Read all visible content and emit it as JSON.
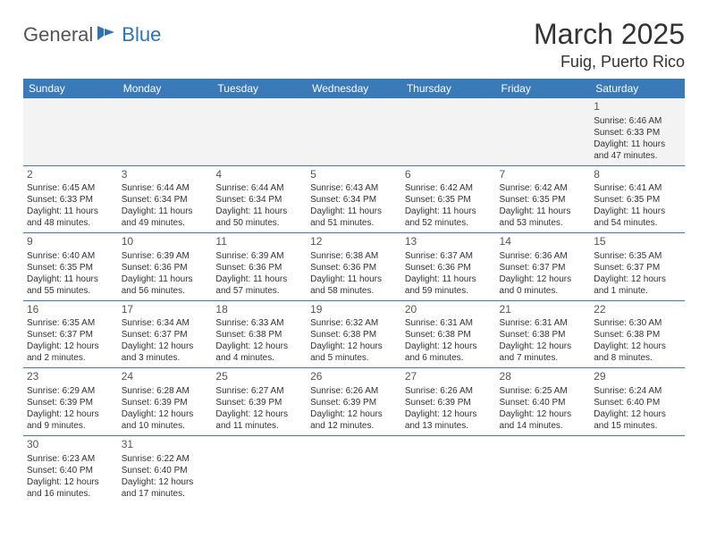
{
  "logo": {
    "general": "General",
    "blue": "Blue"
  },
  "title": "March 2025",
  "location": "Fuig, Puerto Rico",
  "headers": [
    "Sunday",
    "Monday",
    "Tuesday",
    "Wednesday",
    "Thursday",
    "Friday",
    "Saturday"
  ],
  "colors": {
    "header_bg": "#3a7ab8",
    "header_fg": "#ffffff",
    "first_row_bg": "#f3f3f3",
    "border": "#3a7ab8",
    "logo_blue": "#2e74b5"
  },
  "weeks": [
    [
      null,
      null,
      null,
      null,
      null,
      null,
      {
        "n": "1",
        "sr": "Sunrise: 6:46 AM",
        "ss": "Sunset: 6:33 PM",
        "d1": "Daylight: 11 hours",
        "d2": "and 47 minutes."
      }
    ],
    [
      {
        "n": "2",
        "sr": "Sunrise: 6:45 AM",
        "ss": "Sunset: 6:33 PM",
        "d1": "Daylight: 11 hours",
        "d2": "and 48 minutes."
      },
      {
        "n": "3",
        "sr": "Sunrise: 6:44 AM",
        "ss": "Sunset: 6:34 PM",
        "d1": "Daylight: 11 hours",
        "d2": "and 49 minutes."
      },
      {
        "n": "4",
        "sr": "Sunrise: 6:44 AM",
        "ss": "Sunset: 6:34 PM",
        "d1": "Daylight: 11 hours",
        "d2": "and 50 minutes."
      },
      {
        "n": "5",
        "sr": "Sunrise: 6:43 AM",
        "ss": "Sunset: 6:34 PM",
        "d1": "Daylight: 11 hours",
        "d2": "and 51 minutes."
      },
      {
        "n": "6",
        "sr": "Sunrise: 6:42 AM",
        "ss": "Sunset: 6:35 PM",
        "d1": "Daylight: 11 hours",
        "d2": "and 52 minutes."
      },
      {
        "n": "7",
        "sr": "Sunrise: 6:42 AM",
        "ss": "Sunset: 6:35 PM",
        "d1": "Daylight: 11 hours",
        "d2": "and 53 minutes."
      },
      {
        "n": "8",
        "sr": "Sunrise: 6:41 AM",
        "ss": "Sunset: 6:35 PM",
        "d1": "Daylight: 11 hours",
        "d2": "and 54 minutes."
      }
    ],
    [
      {
        "n": "9",
        "sr": "Sunrise: 6:40 AM",
        "ss": "Sunset: 6:35 PM",
        "d1": "Daylight: 11 hours",
        "d2": "and 55 minutes."
      },
      {
        "n": "10",
        "sr": "Sunrise: 6:39 AM",
        "ss": "Sunset: 6:36 PM",
        "d1": "Daylight: 11 hours",
        "d2": "and 56 minutes."
      },
      {
        "n": "11",
        "sr": "Sunrise: 6:39 AM",
        "ss": "Sunset: 6:36 PM",
        "d1": "Daylight: 11 hours",
        "d2": "and 57 minutes."
      },
      {
        "n": "12",
        "sr": "Sunrise: 6:38 AM",
        "ss": "Sunset: 6:36 PM",
        "d1": "Daylight: 11 hours",
        "d2": "and 58 minutes."
      },
      {
        "n": "13",
        "sr": "Sunrise: 6:37 AM",
        "ss": "Sunset: 6:36 PM",
        "d1": "Daylight: 11 hours",
        "d2": "and 59 minutes."
      },
      {
        "n": "14",
        "sr": "Sunrise: 6:36 AM",
        "ss": "Sunset: 6:37 PM",
        "d1": "Daylight: 12 hours",
        "d2": "and 0 minutes."
      },
      {
        "n": "15",
        "sr": "Sunrise: 6:35 AM",
        "ss": "Sunset: 6:37 PM",
        "d1": "Daylight: 12 hours",
        "d2": "and 1 minute."
      }
    ],
    [
      {
        "n": "16",
        "sr": "Sunrise: 6:35 AM",
        "ss": "Sunset: 6:37 PM",
        "d1": "Daylight: 12 hours",
        "d2": "and 2 minutes."
      },
      {
        "n": "17",
        "sr": "Sunrise: 6:34 AM",
        "ss": "Sunset: 6:37 PM",
        "d1": "Daylight: 12 hours",
        "d2": "and 3 minutes."
      },
      {
        "n": "18",
        "sr": "Sunrise: 6:33 AM",
        "ss": "Sunset: 6:38 PM",
        "d1": "Daylight: 12 hours",
        "d2": "and 4 minutes."
      },
      {
        "n": "19",
        "sr": "Sunrise: 6:32 AM",
        "ss": "Sunset: 6:38 PM",
        "d1": "Daylight: 12 hours",
        "d2": "and 5 minutes."
      },
      {
        "n": "20",
        "sr": "Sunrise: 6:31 AM",
        "ss": "Sunset: 6:38 PM",
        "d1": "Daylight: 12 hours",
        "d2": "and 6 minutes."
      },
      {
        "n": "21",
        "sr": "Sunrise: 6:31 AM",
        "ss": "Sunset: 6:38 PM",
        "d1": "Daylight: 12 hours",
        "d2": "and 7 minutes."
      },
      {
        "n": "22",
        "sr": "Sunrise: 6:30 AM",
        "ss": "Sunset: 6:38 PM",
        "d1": "Daylight: 12 hours",
        "d2": "and 8 minutes."
      }
    ],
    [
      {
        "n": "23",
        "sr": "Sunrise: 6:29 AM",
        "ss": "Sunset: 6:39 PM",
        "d1": "Daylight: 12 hours",
        "d2": "and 9 minutes."
      },
      {
        "n": "24",
        "sr": "Sunrise: 6:28 AM",
        "ss": "Sunset: 6:39 PM",
        "d1": "Daylight: 12 hours",
        "d2": "and 10 minutes."
      },
      {
        "n": "25",
        "sr": "Sunrise: 6:27 AM",
        "ss": "Sunset: 6:39 PM",
        "d1": "Daylight: 12 hours",
        "d2": "and 11 minutes."
      },
      {
        "n": "26",
        "sr": "Sunrise: 6:26 AM",
        "ss": "Sunset: 6:39 PM",
        "d1": "Daylight: 12 hours",
        "d2": "and 12 minutes."
      },
      {
        "n": "27",
        "sr": "Sunrise: 6:26 AM",
        "ss": "Sunset: 6:39 PM",
        "d1": "Daylight: 12 hours",
        "d2": "and 13 minutes."
      },
      {
        "n": "28",
        "sr": "Sunrise: 6:25 AM",
        "ss": "Sunset: 6:40 PM",
        "d1": "Daylight: 12 hours",
        "d2": "and 14 minutes."
      },
      {
        "n": "29",
        "sr": "Sunrise: 6:24 AM",
        "ss": "Sunset: 6:40 PM",
        "d1": "Daylight: 12 hours",
        "d2": "and 15 minutes."
      }
    ],
    [
      {
        "n": "30",
        "sr": "Sunrise: 6:23 AM",
        "ss": "Sunset: 6:40 PM",
        "d1": "Daylight: 12 hours",
        "d2": "and 16 minutes."
      },
      {
        "n": "31",
        "sr": "Sunrise: 6:22 AM",
        "ss": "Sunset: 6:40 PM",
        "d1": "Daylight: 12 hours",
        "d2": "and 17 minutes."
      },
      null,
      null,
      null,
      null,
      null
    ]
  ]
}
